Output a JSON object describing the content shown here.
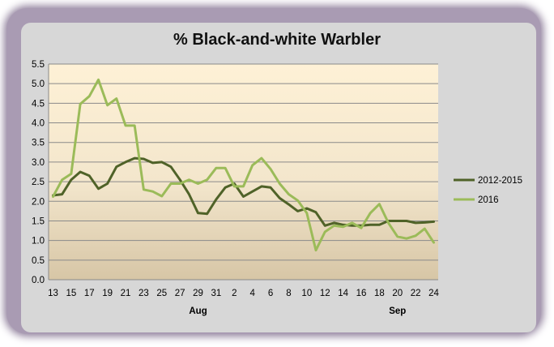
{
  "chart_data": {
    "type": "line",
    "title": "% Black-and-white Warbler",
    "xlabel": "",
    "ylabel": "",
    "ylim": [
      0,
      5.5
    ],
    "y_ticks": [
      "0.0",
      "0.5",
      "1.0",
      "1.5",
      "2.0",
      "2.5",
      "3.0",
      "3.5",
      "4.0",
      "4.5",
      "5.0",
      "5.5"
    ],
    "x_tick_labels": [
      "13",
      "15",
      "17",
      "19",
      "21",
      "23",
      "25",
      "27",
      "29",
      "31",
      "2",
      "4",
      "6",
      "8",
      "10",
      "12",
      "14",
      "16",
      "18",
      "20",
      "22",
      "24"
    ],
    "months": [
      {
        "label": "Aug",
        "at_index": 16
      },
      {
        "label": "Sep",
        "at_index": 38
      }
    ],
    "grid": true,
    "legend_position": "right",
    "x": [
      "Aug 13",
      "Aug 14",
      "Aug 15",
      "Aug 16",
      "Aug 17",
      "Aug 18",
      "Aug 19",
      "Aug 20",
      "Aug 21",
      "Aug 22",
      "Aug 23",
      "Aug 24",
      "Aug 25",
      "Aug 26",
      "Aug 27",
      "Aug 28",
      "Aug 29",
      "Aug 30",
      "Aug 31",
      "Sep 1",
      "Sep 2",
      "Sep 3",
      "Sep 4",
      "Sep 5",
      "Sep 6",
      "Sep 7",
      "Sep 8",
      "Sep 9",
      "Sep 10",
      "Sep 11",
      "Sep 12",
      "Sep 13",
      "Sep 14",
      "Sep 15",
      "Sep 16",
      "Sep 17",
      "Sep 18",
      "Sep 19",
      "Sep 20",
      "Sep 21",
      "Sep 22",
      "Sep 23",
      "Sep 24"
    ],
    "series": [
      {
        "name": "2012-2015",
        "color": "#4f6228",
        "values": [
          2.15,
          2.18,
          2.55,
          2.75,
          2.65,
          2.32,
          2.45,
          2.88,
          3.0,
          3.1,
          3.08,
          2.98,
          3.0,
          2.88,
          2.55,
          2.18,
          1.7,
          1.68,
          2.05,
          2.35,
          2.45,
          2.12,
          2.25,
          2.38,
          2.35,
          2.08,
          1.92,
          1.75,
          1.82,
          1.72,
          1.38,
          1.45,
          1.4,
          1.38,
          1.38,
          1.4,
          1.4,
          1.5,
          1.5,
          1.5,
          1.45,
          1.46,
          1.48
        ]
      },
      {
        "name": "2016",
        "color": "#9bbb59",
        "values": [
          2.12,
          2.55,
          2.7,
          4.48,
          4.68,
          5.1,
          4.45,
          4.62,
          3.93,
          3.93,
          2.3,
          2.25,
          2.13,
          2.45,
          2.45,
          2.55,
          2.45,
          2.55,
          2.85,
          2.85,
          2.38,
          2.38,
          2.92,
          3.1,
          2.82,
          2.45,
          2.18,
          2.02,
          1.7,
          0.75,
          1.22,
          1.38,
          1.35,
          1.45,
          1.32,
          1.7,
          1.93,
          1.45,
          1.1,
          1.05,
          1.12,
          1.3,
          0.95
        ]
      }
    ]
  }
}
